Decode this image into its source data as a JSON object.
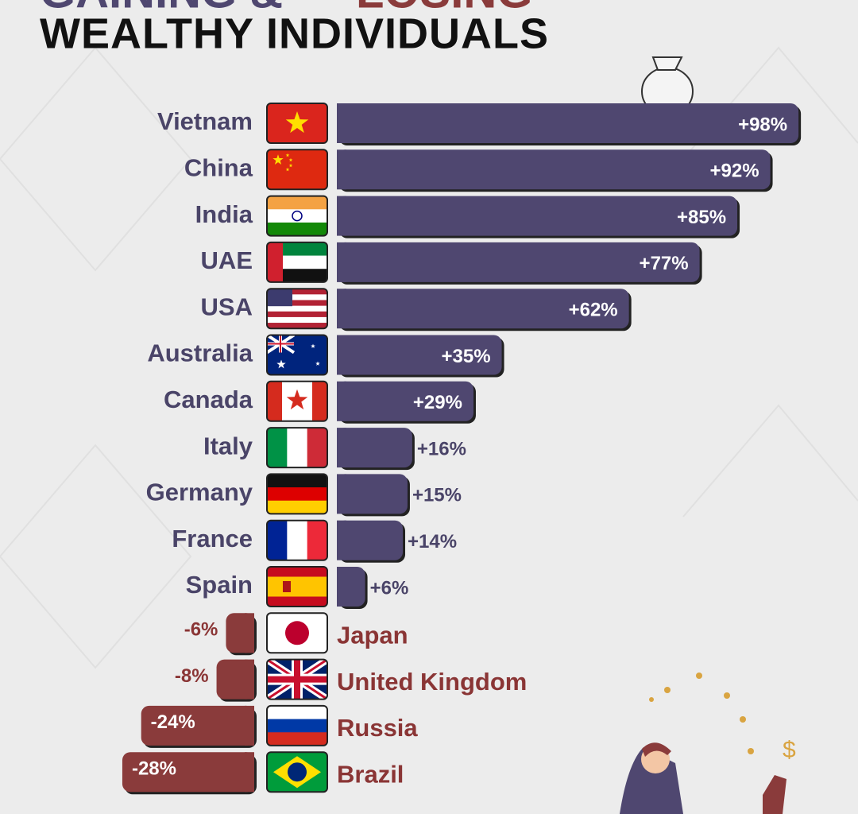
{
  "chart_data": {
    "type": "bar",
    "title": [
      "GAINING &",
      "LOSING"
    ],
    "subtitle": "WEALTHY INDIVIDUALS",
    "categories": [
      "Vietnam",
      "China",
      "India",
      "UAE",
      "USA",
      "Australia",
      "Canada",
      "Italy",
      "Germany",
      "France",
      "Spain",
      "Japan",
      "United Kingdom",
      "Russia",
      "Brazil"
    ],
    "values": [
      98,
      92,
      85,
      77,
      62,
      35,
      29,
      16,
      15,
      14,
      6,
      -6,
      -8,
      -24,
      -28
    ],
    "value_labels": [
      "+98%",
      "+92%",
      "+85%",
      "+77%",
      "+62%",
      "+35%",
      "+29%",
      "+16%",
      "+15%",
      "+14%",
      "+6%",
      "-6%",
      "-8%",
      "-24%",
      "-28%"
    ],
    "colors": {
      "positive": "#4f4770",
      "negative": "#8a3b3b"
    }
  }
}
